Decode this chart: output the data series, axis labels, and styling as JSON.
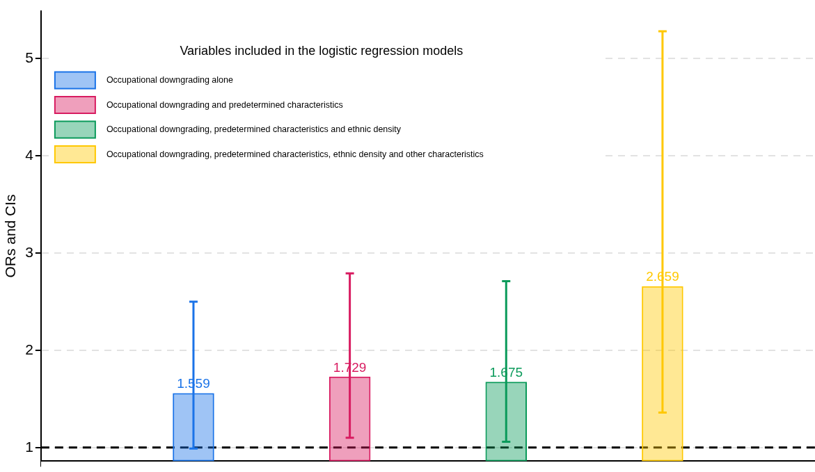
{
  "chart_data": {
    "type": "bar",
    "ylabel": "ORs and CIs",
    "legend_title": "Variables included in the logistic regression models",
    "legend": "top left",
    "grid": "y",
    "categories": [
      null
    ],
    "series": [
      {
        "name": "Occupational downgrading alone",
        "color": "#1a73e8",
        "values": [
          1.559
        ],
        "errors": [
          [
            0.99,
            2.5
          ]
        ],
        "value_labels": [
          "1.559"
        ]
      },
      {
        "name": "Occupational downgrading and predetermined characteristics",
        "color": "#d81b60",
        "values": [
          1.729
        ],
        "errors": [
          [
            1.1,
            2.79
          ]
        ],
        "value_labels": [
          "1.729"
        ]
      },
      {
        "name": "Occupational downgrading, predetermined characteristics and ethnic density",
        "color": "#0a9a5a",
        "values": [
          1.675
        ],
        "errors": [
          [
            1.06,
            2.71
          ]
        ],
        "value_labels": [
          "1.675"
        ]
      },
      {
        "name": "Occupational downgrading, predetermined characteristics, ethnic density and other characteristics",
        "color": "#ffc800",
        "values": [
          2.659
        ],
        "errors": [
          [
            1.36,
            5.28
          ]
        ],
        "value_labels": [
          "2.659"
        ]
      }
    ],
    "ylim": [
      0.86,
      5.49
    ],
    "yticks": [
      1,
      2,
      3,
      4,
      5
    ],
    "ref_lines": [
      {
        "axis": "y",
        "value": 1,
        "color": "#000000",
        "line_style": "dashed"
      }
    ]
  }
}
